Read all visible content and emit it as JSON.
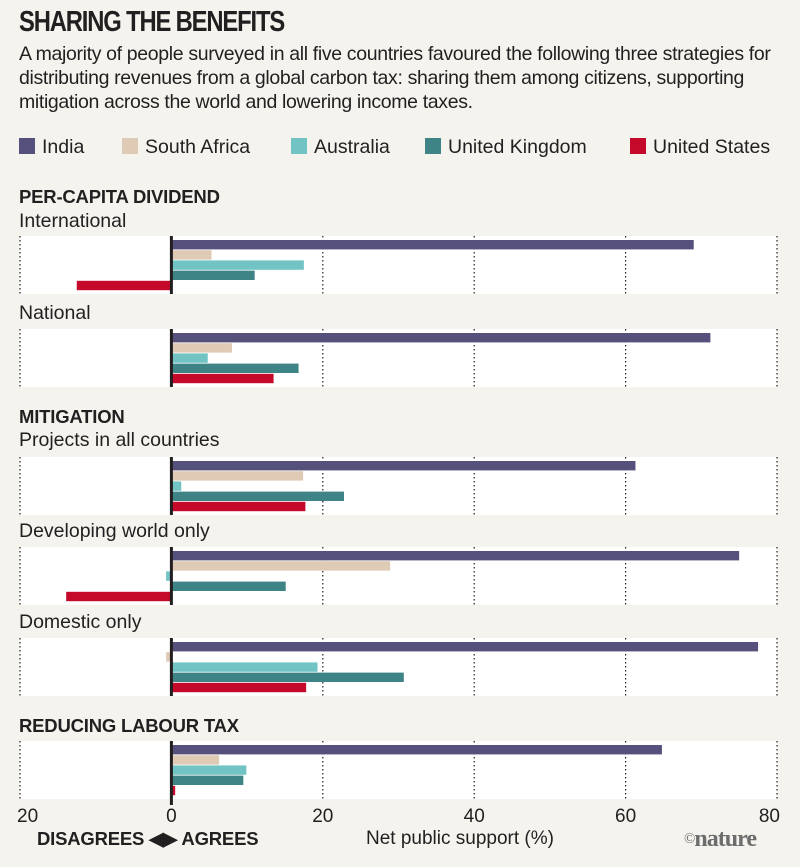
{
  "chart_data": {
    "type": "bar",
    "orientation": "horizontal",
    "title": "SHARING THE BENEFITS",
    "subtitle": "A majority of people surveyed in all five countries favoured the following three strategies for distributing revenues from a global carbon tax: sharing them among citizens, supporting mitigation across the world and lowering income taxes.",
    "xlabel": "Net public support (%)",
    "direction_label": "DISAGREES ◀▶ AGREES",
    "xlim": [
      -20,
      80
    ],
    "xticks": [
      -20,
      0,
      20,
      40,
      60,
      80
    ],
    "xtick_labels": [
      "20",
      "0",
      "20",
      "40",
      "60",
      "80"
    ],
    "grid": true,
    "legend_position": "top",
    "series": [
      {
        "name": "India",
        "color": "#56507c"
      },
      {
        "name": "South Africa",
        "color": "#dfcab5"
      },
      {
        "name": "Australia",
        "color": "#72c4c4"
      },
      {
        "name": "United Kingdom",
        "color": "#3e8385"
      },
      {
        "name": "United States",
        "color": "#c4092a"
      }
    ],
    "groups": [
      {
        "heading": "PER-CAPITA DIVIDEND",
        "panels": [
          {
            "label": "International",
            "values": [
              69,
              5.3,
              17.5,
              11,
              -12.5
            ]
          },
          {
            "label": "National",
            "values": [
              71.2,
              8,
              4.8,
              16.8,
              13.5
            ]
          }
        ]
      },
      {
        "heading": "MITIGATION",
        "panels": [
          {
            "label": "Projects in all countries",
            "values": [
              61.3,
              17.4,
              1.3,
              22.8,
              17.7
            ]
          },
          {
            "label": "Developing world only",
            "values": [
              75,
              28.9,
              -0.7,
              15.1,
              -13.9
            ]
          },
          {
            "label": "Domestic only",
            "values": [
              77.5,
              -0.7,
              19.3,
              30.7,
              17.8
            ]
          }
        ]
      },
      {
        "heading": "REDUCING LABOUR TAX",
        "panels": [
          {
            "label": "",
            "values": [
              64.8,
              6.3,
              9.9,
              9.5,
              0.5
            ]
          }
        ]
      }
    ]
  },
  "credit": {
    "symbol": "©",
    "name": "nature"
  }
}
